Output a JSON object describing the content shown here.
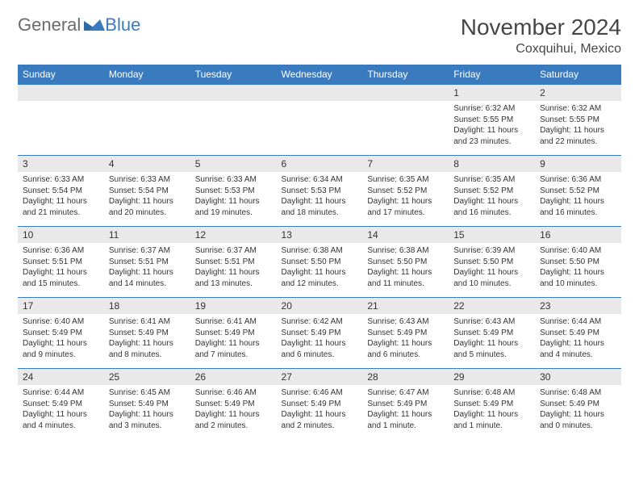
{
  "logo": {
    "word1": "General",
    "word2": "Blue"
  },
  "header": {
    "title": "November 2024",
    "subtitle": "Coxquihui, Mexico"
  },
  "calendar": {
    "columns": [
      "Sunday",
      "Monday",
      "Tuesday",
      "Wednesday",
      "Thursday",
      "Friday",
      "Saturday"
    ],
    "header_bg": "#3a7bbf",
    "header_fg": "#ffffff",
    "row_divider": "#3a7bbf",
    "daynum_bg": "#e9e9e9",
    "weeks": [
      [
        null,
        null,
        null,
        null,
        null,
        {
          "n": "1",
          "sunrise": "6:32 AM",
          "sunset": "5:55 PM",
          "daylight": "11 hours and 23 minutes."
        },
        {
          "n": "2",
          "sunrise": "6:32 AM",
          "sunset": "5:55 PM",
          "daylight": "11 hours and 22 minutes."
        }
      ],
      [
        {
          "n": "3",
          "sunrise": "6:33 AM",
          "sunset": "5:54 PM",
          "daylight": "11 hours and 21 minutes."
        },
        {
          "n": "4",
          "sunrise": "6:33 AM",
          "sunset": "5:54 PM",
          "daylight": "11 hours and 20 minutes."
        },
        {
          "n": "5",
          "sunrise": "6:33 AM",
          "sunset": "5:53 PM",
          "daylight": "11 hours and 19 minutes."
        },
        {
          "n": "6",
          "sunrise": "6:34 AM",
          "sunset": "5:53 PM",
          "daylight": "11 hours and 18 minutes."
        },
        {
          "n": "7",
          "sunrise": "6:35 AM",
          "sunset": "5:52 PM",
          "daylight": "11 hours and 17 minutes."
        },
        {
          "n": "8",
          "sunrise": "6:35 AM",
          "sunset": "5:52 PM",
          "daylight": "11 hours and 16 minutes."
        },
        {
          "n": "9",
          "sunrise": "6:36 AM",
          "sunset": "5:52 PM",
          "daylight": "11 hours and 16 minutes."
        }
      ],
      [
        {
          "n": "10",
          "sunrise": "6:36 AM",
          "sunset": "5:51 PM",
          "daylight": "11 hours and 15 minutes."
        },
        {
          "n": "11",
          "sunrise": "6:37 AM",
          "sunset": "5:51 PM",
          "daylight": "11 hours and 14 minutes."
        },
        {
          "n": "12",
          "sunrise": "6:37 AM",
          "sunset": "5:51 PM",
          "daylight": "11 hours and 13 minutes."
        },
        {
          "n": "13",
          "sunrise": "6:38 AM",
          "sunset": "5:50 PM",
          "daylight": "11 hours and 12 minutes."
        },
        {
          "n": "14",
          "sunrise": "6:38 AM",
          "sunset": "5:50 PM",
          "daylight": "11 hours and 11 minutes."
        },
        {
          "n": "15",
          "sunrise": "6:39 AM",
          "sunset": "5:50 PM",
          "daylight": "11 hours and 10 minutes."
        },
        {
          "n": "16",
          "sunrise": "6:40 AM",
          "sunset": "5:50 PM",
          "daylight": "11 hours and 10 minutes."
        }
      ],
      [
        {
          "n": "17",
          "sunrise": "6:40 AM",
          "sunset": "5:49 PM",
          "daylight": "11 hours and 9 minutes."
        },
        {
          "n": "18",
          "sunrise": "6:41 AM",
          "sunset": "5:49 PM",
          "daylight": "11 hours and 8 minutes."
        },
        {
          "n": "19",
          "sunrise": "6:41 AM",
          "sunset": "5:49 PM",
          "daylight": "11 hours and 7 minutes."
        },
        {
          "n": "20",
          "sunrise": "6:42 AM",
          "sunset": "5:49 PM",
          "daylight": "11 hours and 6 minutes."
        },
        {
          "n": "21",
          "sunrise": "6:43 AM",
          "sunset": "5:49 PM",
          "daylight": "11 hours and 6 minutes."
        },
        {
          "n": "22",
          "sunrise": "6:43 AM",
          "sunset": "5:49 PM",
          "daylight": "11 hours and 5 minutes."
        },
        {
          "n": "23",
          "sunrise": "6:44 AM",
          "sunset": "5:49 PM",
          "daylight": "11 hours and 4 minutes."
        }
      ],
      [
        {
          "n": "24",
          "sunrise": "6:44 AM",
          "sunset": "5:49 PM",
          "daylight": "11 hours and 4 minutes."
        },
        {
          "n": "25",
          "sunrise": "6:45 AM",
          "sunset": "5:49 PM",
          "daylight": "11 hours and 3 minutes."
        },
        {
          "n": "26",
          "sunrise": "6:46 AM",
          "sunset": "5:49 PM",
          "daylight": "11 hours and 2 minutes."
        },
        {
          "n": "27",
          "sunrise": "6:46 AM",
          "sunset": "5:49 PM",
          "daylight": "11 hours and 2 minutes."
        },
        {
          "n": "28",
          "sunrise": "6:47 AM",
          "sunset": "5:49 PM",
          "daylight": "11 hours and 1 minute."
        },
        {
          "n": "29",
          "sunrise": "6:48 AM",
          "sunset": "5:49 PM",
          "daylight": "11 hours and 1 minute."
        },
        {
          "n": "30",
          "sunrise": "6:48 AM",
          "sunset": "5:49 PM",
          "daylight": "11 hours and 0 minutes."
        }
      ]
    ],
    "labels": {
      "sunrise": "Sunrise:",
      "sunset": "Sunset:",
      "daylight": "Daylight:"
    }
  }
}
